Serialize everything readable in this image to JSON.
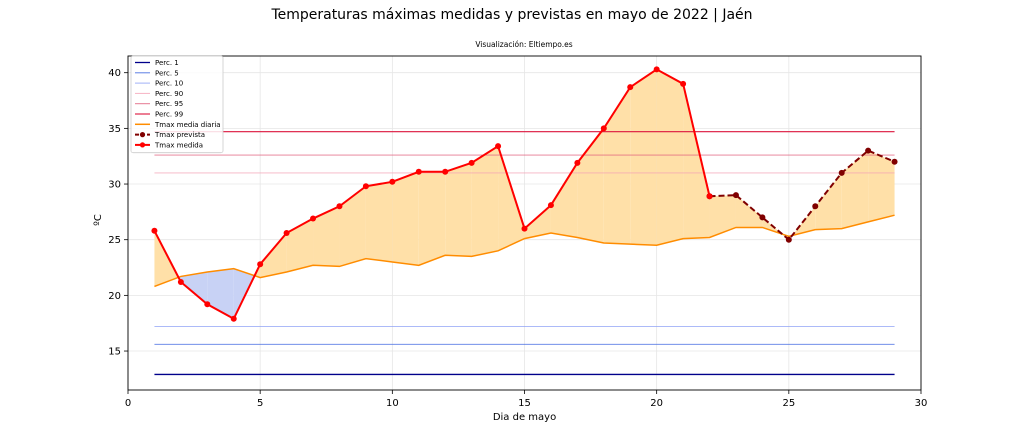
{
  "chart_data": {
    "type": "line",
    "title": "Temperaturas máximas medidas y previstas en mayo de 2022 | Jaén",
    "subtitle": "Visualización: Eltiempo.es",
    "xlabel": "Dia de mayo",
    "ylabel": "ºC",
    "xlim": [
      0,
      30
    ],
    "ylim": [
      11.5,
      41.5
    ],
    "xticks": [
      0,
      5,
      10,
      15,
      20,
      25,
      30
    ],
    "yticks": [
      15,
      20,
      25,
      30,
      35,
      40
    ],
    "grid": true,
    "legend_position": "top-left",
    "percentiles": [
      {
        "name": "Perc. 1",
        "value": 12.9,
        "color": "#00008b",
        "width": 1.3,
        "opacity": 1
      },
      {
        "name": "Perc. 5",
        "value": 15.6,
        "color": "#4169e1",
        "width": 0.9,
        "opacity": 0.85
      },
      {
        "name": "Perc. 10",
        "value": 17.2,
        "color": "#8a9df5",
        "width": 0.9,
        "opacity": 0.8
      },
      {
        "name": "Perc. 90",
        "value": 31.0,
        "color": "#f4a0b4",
        "width": 0.9,
        "opacity": 0.8
      },
      {
        "name": "Perc. 95",
        "value": 32.6,
        "color": "#e0607e",
        "width": 0.9,
        "opacity": 0.85
      },
      {
        "name": "Perc. 99",
        "value": 34.7,
        "color": "#dc143c",
        "width": 1.1,
        "opacity": 1
      }
    ],
    "series": [
      {
        "name": "Tmax media diaria",
        "color": "#ff8c00",
        "x": [
          1,
          2,
          3,
          4,
          5,
          6,
          7,
          8,
          9,
          10,
          11,
          12,
          13,
          14,
          15,
          16,
          17,
          18,
          19,
          20,
          21,
          22,
          23,
          24,
          25,
          26,
          27,
          28,
          29
        ],
        "values": [
          20.8,
          21.7,
          22.1,
          22.4,
          21.6,
          22.1,
          22.7,
          22.6,
          23.3,
          23.0,
          22.7,
          23.6,
          23.5,
          24.0,
          25.1,
          25.6,
          25.2,
          24.7,
          24.6,
          24.5,
          25.1,
          25.2,
          26.1,
          26.1,
          25.3,
          25.9,
          26.0,
          26.6,
          27.2
        ]
      },
      {
        "name": "Tmax prevista",
        "color": "#800000",
        "x": [
          22,
          23,
          24,
          25,
          26,
          27,
          28,
          29
        ],
        "values": [
          28.9,
          29.0,
          27.0,
          25.0,
          28.0,
          31.0,
          33.0,
          32.0
        ]
      },
      {
        "name": "Tmax medida",
        "color": "#ff0000",
        "x": [
          1,
          2,
          3,
          4,
          5,
          6,
          7,
          8,
          9,
          10,
          11,
          12,
          13,
          14,
          15,
          16,
          17,
          18,
          19,
          20,
          21,
          22
        ],
        "values": [
          25.8,
          21.2,
          19.2,
          17.9,
          22.8,
          25.6,
          26.9,
          28.0,
          29.8,
          30.2,
          31.1,
          31.1,
          31.9,
          33.4,
          26.0,
          28.1,
          31.9,
          35.0,
          38.7,
          40.3,
          39.0,
          28.9
        ]
      }
    ],
    "fill_above_color": "#ffe0a8",
    "fill_below_color": "#c8d2f5"
  }
}
